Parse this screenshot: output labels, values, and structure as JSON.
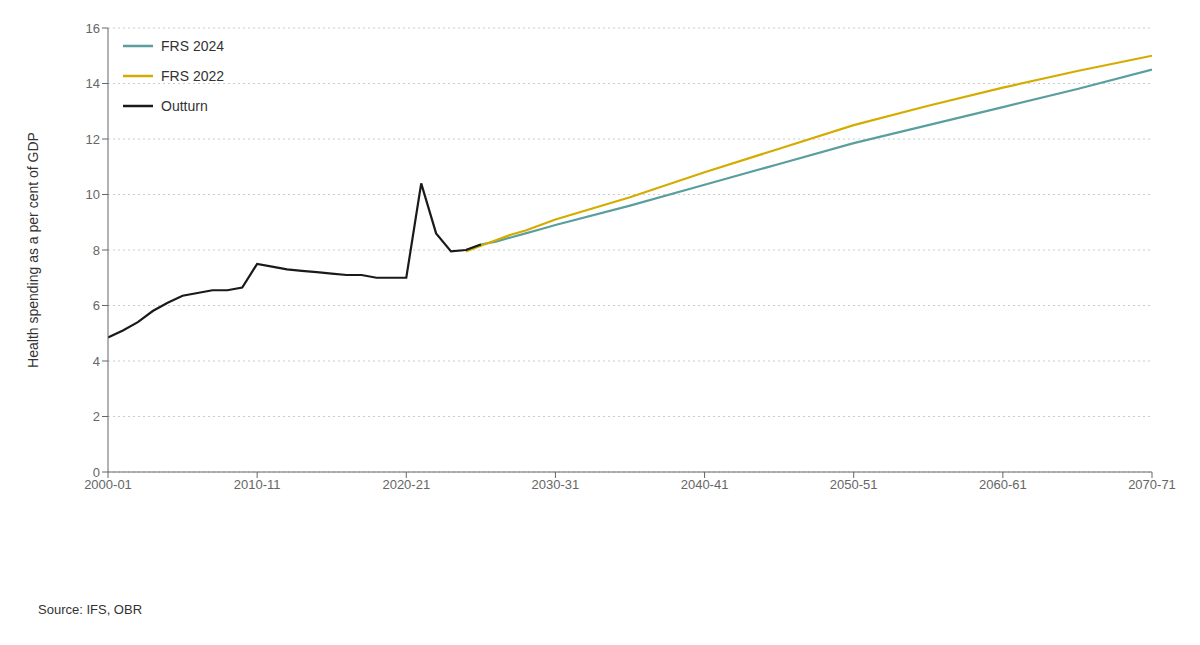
{
  "chart_data": {
    "type": "line",
    "ylabel": "Health spending as a per cent of GDP",
    "annotation": "Source: IFS, OBR",
    "xlim": [
      0,
      70
    ],
    "xticks": [
      {
        "value": 0,
        "label": "2000-01"
      },
      {
        "value": 10,
        "label": "2010-11"
      },
      {
        "value": 20,
        "label": "2020-21"
      },
      {
        "value": 30,
        "label": "2030-31"
      },
      {
        "value": 40,
        "label": "2040-41"
      },
      {
        "value": 50,
        "label": "2050-51"
      },
      {
        "value": 60,
        "label": "2060-61"
      },
      {
        "value": 70,
        "label": "2070-71"
      }
    ],
    "ylim": [
      0,
      16
    ],
    "yticks": [
      0,
      2,
      4,
      6,
      8,
      10,
      12,
      14,
      16
    ],
    "grid": "y",
    "legend": "upper left",
    "series": [
      {
        "name": "FRS 2024",
        "color": "#5a9e9e",
        "x": [
          24,
          25,
          26,
          27,
          28,
          29,
          30,
          35,
          40,
          45,
          50,
          55,
          60,
          65,
          70
        ],
        "values": [
          8.0,
          8.2,
          8.3,
          8.45,
          8.6,
          8.75,
          8.9,
          9.6,
          10.35,
          11.1,
          11.85,
          12.5,
          13.15,
          13.8,
          14.5
        ]
      },
      {
        "name": "FRS 2022",
        "color": "#d4ac00",
        "x": [
          24,
          25,
          26,
          27,
          28,
          29,
          30,
          35,
          40,
          45,
          50,
          55,
          60,
          65,
          70
        ],
        "values": [
          7.95,
          8.15,
          8.35,
          8.55,
          8.7,
          8.9,
          9.1,
          9.9,
          10.8,
          11.65,
          12.5,
          13.2,
          13.85,
          14.45,
          15.0
        ]
      },
      {
        "name": "Outturn",
        "color": "#1a1a1a",
        "x": [
          0,
          1,
          2,
          3,
          4,
          5,
          6,
          7,
          8,
          9,
          10,
          11,
          12,
          13,
          14,
          15,
          16,
          17,
          18,
          19,
          20,
          21,
          22,
          23,
          24,
          25
        ],
        "values": [
          4.85,
          5.1,
          5.4,
          5.8,
          6.1,
          6.35,
          6.45,
          6.55,
          6.55,
          6.65,
          7.5,
          7.4,
          7.3,
          7.25,
          7.2,
          7.15,
          7.1,
          7.1,
          7.0,
          7.0,
          7.0,
          10.4,
          8.6,
          7.95,
          8.0,
          8.2
        ]
      }
    ]
  }
}
